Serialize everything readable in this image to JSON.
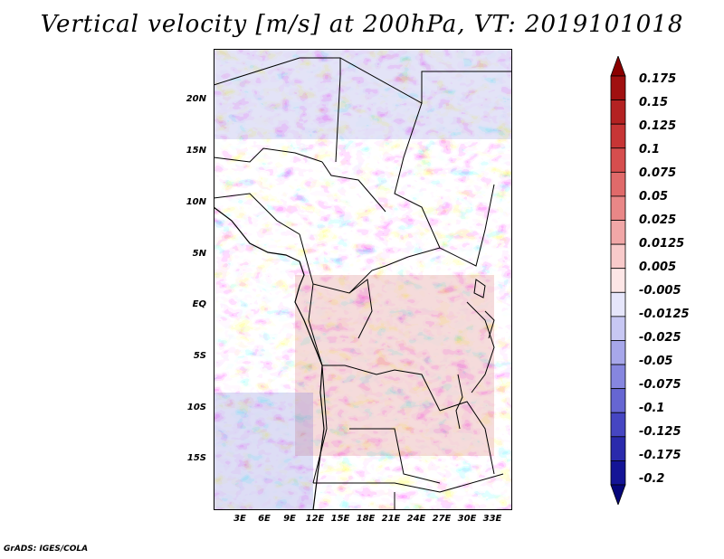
{
  "title": "Vertical velocity [m/s] at 200hPa, VT: 2019101018",
  "credit": "GrADS: IGES/COLA",
  "map": {
    "lat_labels": [
      "20N",
      "15N",
      "10N",
      "5N",
      "EQ",
      "5S",
      "10S",
      "15S"
    ],
    "lon_labels": [
      "3E",
      "6E",
      "9E",
      "12E",
      "15E",
      "18E",
      "21E",
      "24E",
      "27E",
      "30E",
      "33E"
    ],
    "field": "vertical velocity",
    "dominant_pattern": "mixed positive and negative small-scale cells"
  },
  "colorbar": {
    "labels": [
      "0.175",
      "0.15",
      "0.125",
      "0.1",
      "0.075",
      "0.05",
      "0.025",
      "0.0125",
      "0.005",
      "-0.005",
      "-0.0125",
      "-0.025",
      "-0.05",
      "-0.075",
      "-0.1",
      "-0.125",
      "-0.175",
      "-0.2"
    ],
    "colors": [
      "#8b0000",
      "#a01010",
      "#b42222",
      "#c73535",
      "#d64e4e",
      "#e06a6a",
      "#e98787",
      "#f1a7a7",
      "#f8caca",
      "#fde6e6",
      "#e6e6fb",
      "#c7c7f3",
      "#a7a7ea",
      "#8686df",
      "#6666d2",
      "#4646c2",
      "#2a2aac",
      "#141496",
      "#06067a"
    ]
  },
  "colors": {
    "positive": "#d64e4e",
    "negative": "#6666d2",
    "neutral": "#ffffff"
  }
}
